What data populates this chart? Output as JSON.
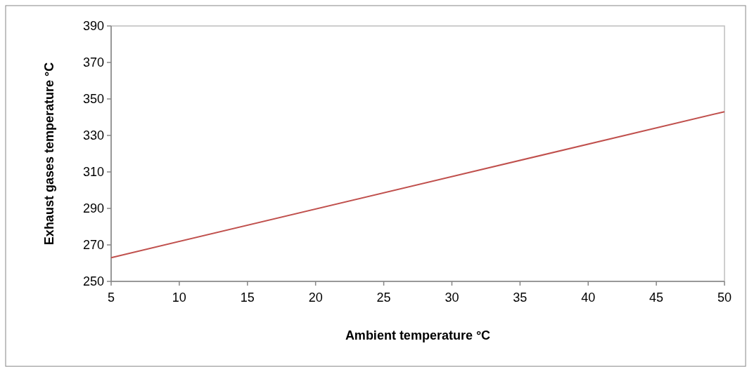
{
  "chart_data": {
    "type": "line",
    "xlabel": "Ambient temperature °C",
    "ylabel": "Exhaust gases temperature °C",
    "x": [
      5,
      50
    ],
    "series": [
      {
        "color": "#c0504d",
        "values": [
          263,
          343
        ]
      }
    ],
    "xlim": [
      5,
      50
    ],
    "xticks": [
      5,
      10,
      15,
      20,
      25,
      30,
      35,
      40,
      45,
      50
    ],
    "ylim": [
      250,
      390
    ],
    "yticks": [
      250,
      270,
      290,
      310,
      330,
      350,
      370,
      390
    ],
    "grid": false,
    "marker": "none",
    "line_style": "solid"
  }
}
